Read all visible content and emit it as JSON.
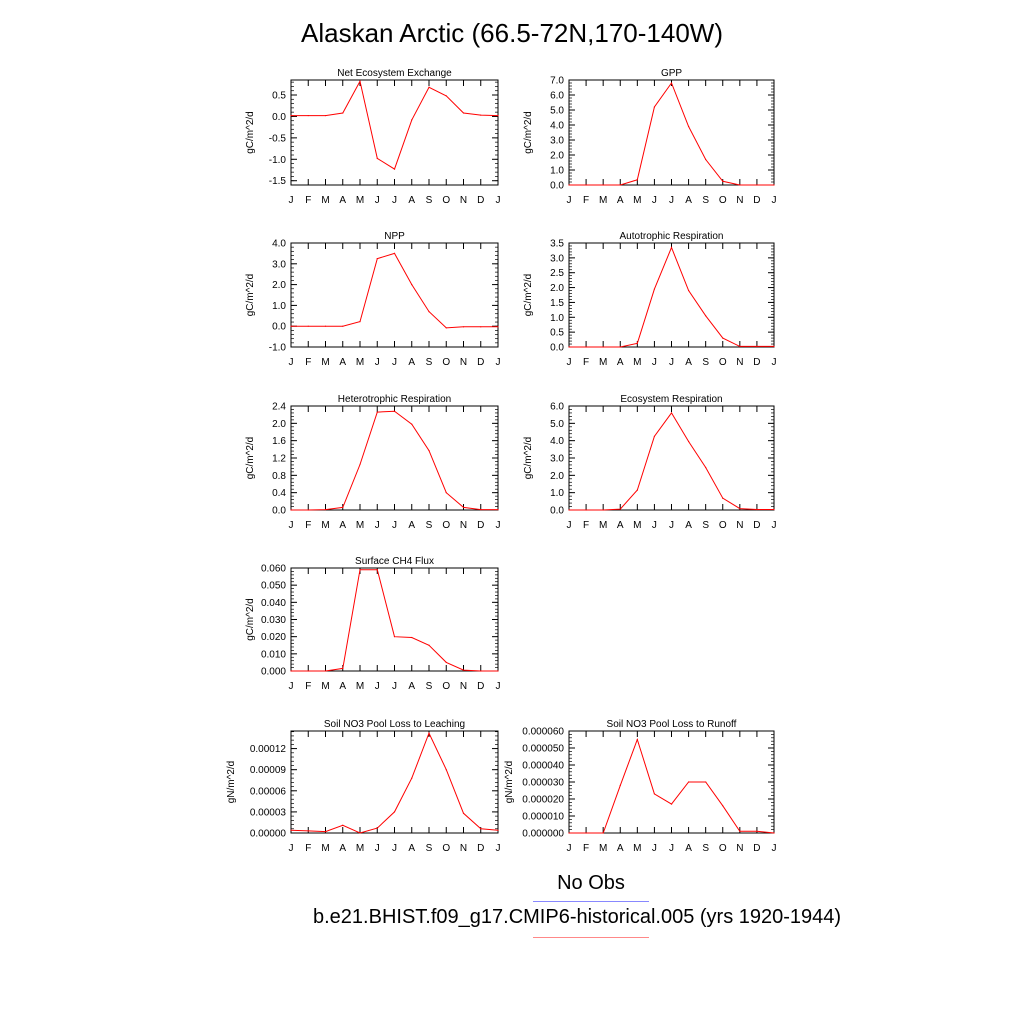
{
  "page": {
    "title": "Alaskan Arctic (66.5-72N,170-140W)"
  },
  "legend": {
    "entries": [
      {
        "label": "No Obs",
        "color": "#8888ff"
      },
      {
        "label": "b.e21.BHIST.f09_g17.CMIP6-historical.005 (yrs 1920-1944)",
        "color": "#ff8888"
      }
    ]
  },
  "chart_data": [
    {
      "type": "line",
      "title": "Net Ecosystem Exchange",
      "ylabel": "gC/m^2/d",
      "categories": [
        "J",
        "F",
        "M",
        "A",
        "M",
        "J",
        "J",
        "A",
        "S",
        "O",
        "N",
        "D",
        "J"
      ],
      "ylim": [
        -1.6,
        0.85
      ],
      "yticks": [
        0.5,
        0.0,
        -0.5,
        -1.0,
        -1.5
      ],
      "yticklabels": [
        "0.5",
        "0.0",
        "-0.5",
        "-1.0",
        "-1.5"
      ],
      "series": [
        {
          "color": "#ff0000",
          "values": [
            0.02,
            0.02,
            0.02,
            0.08,
            0.82,
            -0.98,
            -1.23,
            -0.08,
            0.68,
            0.48,
            0.08,
            0.03,
            0.02
          ]
        }
      ]
    },
    {
      "type": "line",
      "title": "GPP",
      "ylabel": "gC/m^2/d",
      "categories": [
        "J",
        "F",
        "M",
        "A",
        "M",
        "J",
        "J",
        "A",
        "S",
        "O",
        "N",
        "D",
        "J"
      ],
      "ylim": [
        0.0,
        7.0
      ],
      "yticks": [
        0.0,
        1.0,
        2.0,
        3.0,
        4.0,
        5.0,
        6.0,
        7.0
      ],
      "yticklabels": [
        "0.0",
        "1.0",
        "2.0",
        "3.0",
        "4.0",
        "5.0",
        "6.0",
        "7.0"
      ],
      "series": [
        {
          "color": "#ff0000",
          "values": [
            0.0,
            0.0,
            0.0,
            0.0,
            0.35,
            5.2,
            6.8,
            3.9,
            1.7,
            0.25,
            0.0,
            0.0,
            0.0
          ]
        }
      ]
    },
    {
      "type": "line",
      "title": "NPP",
      "ylabel": "gC/m^2/d",
      "categories": [
        "J",
        "F",
        "M",
        "A",
        "M",
        "J",
        "J",
        "A",
        "S",
        "O",
        "N",
        "D",
        "J"
      ],
      "ylim": [
        -1.0,
        4.0
      ],
      "yticks": [
        -1.0,
        0.0,
        1.0,
        2.0,
        3.0,
        4.0
      ],
      "yticklabels": [
        "-1.0",
        "0.0",
        "1.0",
        "2.0",
        "3.0",
        "4.0"
      ],
      "series": [
        {
          "color": "#ff0000",
          "values": [
            0.0,
            0.0,
            0.0,
            0.0,
            0.22,
            3.25,
            3.5,
            2.0,
            0.7,
            -0.08,
            -0.03,
            -0.03,
            -0.03
          ]
        }
      ]
    },
    {
      "type": "line",
      "title": "Autotrophic Respiration",
      "ylabel": "gC/m^2/d",
      "categories": [
        "J",
        "F",
        "M",
        "A",
        "M",
        "J",
        "J",
        "A",
        "S",
        "O",
        "N",
        "D",
        "J"
      ],
      "ylim": [
        0.0,
        3.5
      ],
      "yticks": [
        0.0,
        0.5,
        1.0,
        1.5,
        2.0,
        2.5,
        3.0,
        3.5
      ],
      "yticklabels": [
        "0.0",
        "0.5",
        "1.0",
        "1.5",
        "2.0",
        "2.5",
        "3.0",
        "3.5"
      ],
      "series": [
        {
          "color": "#ff0000",
          "values": [
            0.0,
            0.0,
            0.0,
            0.0,
            0.12,
            1.95,
            3.35,
            1.9,
            1.05,
            0.3,
            0.02,
            0.02,
            0.02
          ]
        }
      ]
    },
    {
      "type": "line",
      "title": "Heterotrophic Respiration",
      "ylabel": "gC/m^2/d",
      "categories": [
        "J",
        "F",
        "M",
        "A",
        "M",
        "J",
        "J",
        "A",
        "S",
        "O",
        "N",
        "D",
        "J"
      ],
      "ylim": [
        0.0,
        2.4
      ],
      "yticks": [
        0.0,
        0.4,
        0.8,
        1.2,
        1.6,
        2.0,
        2.4
      ],
      "yticklabels": [
        "0.0",
        "0.4",
        "0.8",
        "1.2",
        "1.6",
        "2.0",
        "2.4"
      ],
      "series": [
        {
          "color": "#ff0000",
          "values": [
            0.0,
            0.0,
            0.01,
            0.06,
            1.05,
            2.26,
            2.28,
            1.98,
            1.37,
            0.4,
            0.06,
            0.01,
            0.01
          ]
        }
      ]
    },
    {
      "type": "line",
      "title": "Ecosystem Respiration",
      "ylabel": "gC/m^2/d",
      "categories": [
        "J",
        "F",
        "M",
        "A",
        "M",
        "J",
        "J",
        "A",
        "S",
        "O",
        "N",
        "D",
        "J"
      ],
      "ylim": [
        0.0,
        6.0
      ],
      "yticks": [
        0.0,
        1.0,
        2.0,
        3.0,
        4.0,
        5.0,
        6.0
      ],
      "yticklabels": [
        "0.0",
        "1.0",
        "2.0",
        "3.0",
        "4.0",
        "5.0",
        "6.0"
      ],
      "series": [
        {
          "color": "#ff0000",
          "values": [
            0.0,
            0.0,
            0.0,
            0.05,
            1.15,
            4.25,
            5.6,
            3.95,
            2.45,
            0.68,
            0.08,
            0.03,
            0.03
          ]
        }
      ]
    },
    {
      "type": "line",
      "title": "Surface CH4 Flux",
      "ylabel": "gC/m^2/d",
      "categories": [
        "J",
        "F",
        "M",
        "A",
        "M",
        "J",
        "J",
        "A",
        "S",
        "O",
        "N",
        "D",
        "J"
      ],
      "ylim": [
        0.0,
        0.06
      ],
      "yticks": [
        0.0,
        0.01,
        0.02,
        0.03,
        0.04,
        0.05,
        0.06
      ],
      "yticklabels": [
        "0.000",
        "0.010",
        "0.020",
        "0.030",
        "0.040",
        "0.050",
        "0.060"
      ],
      "series": [
        {
          "color": "#ff0000",
          "values": [
            0.0,
            0.0,
            0.0,
            0.0015,
            0.059,
            0.059,
            0.02,
            0.0195,
            0.015,
            0.005,
            0.0005,
            0.0,
            0.0
          ]
        }
      ]
    },
    {
      "type": "line",
      "title": "Soil NO3 Pool Loss to Leaching",
      "ylabel": "gN/m^2/d",
      "categories": [
        "J",
        "F",
        "M",
        "A",
        "M",
        "J",
        "J",
        "A",
        "S",
        "O",
        "N",
        "D",
        "J"
      ],
      "ylim": [
        0.0,
        0.000145
      ],
      "yticks": [
        0.0,
        3e-05,
        6e-05,
        9e-05,
        0.00012
      ],
      "yticklabels": [
        "0.00000",
        "0.00003",
        "0.00006",
        "0.00009",
        "0.00012"
      ],
      "series": [
        {
          "color": "#ff0000",
          "values": [
            4e-06,
            3e-06,
            2e-06,
            1.1e-05,
            0.0,
            7e-06,
            3e-05,
            7.8e-05,
            0.000142,
            9e-05,
            2.8e-05,
            6e-06,
            4e-06
          ]
        }
      ]
    },
    {
      "type": "line",
      "title": "Soil NO3 Pool Loss to Runoff",
      "ylabel": "gN/m^2/d",
      "categories": [
        "J",
        "F",
        "M",
        "A",
        "M",
        "J",
        "J",
        "A",
        "S",
        "O",
        "N",
        "D",
        "J"
      ],
      "ylim": [
        0.0,
        6e-05
      ],
      "yticks": [
        0.0,
        1e-05,
        2e-05,
        3e-05,
        4e-05,
        5e-05,
        6e-05
      ],
      "yticklabels": [
        "0.000000",
        "0.000010",
        "0.000020",
        "0.000030",
        "0.000040",
        "0.000050",
        "0.000060"
      ],
      "series": [
        {
          "color": "#ff0000",
          "values": [
            0.0,
            0.0,
            0.0,
            2.8e-05,
            5.5e-05,
            2.3e-05,
            1.7e-05,
            3e-05,
            3e-05,
            1.6e-05,
            1e-06,
            1e-06,
            0.0
          ]
        }
      ]
    }
  ]
}
